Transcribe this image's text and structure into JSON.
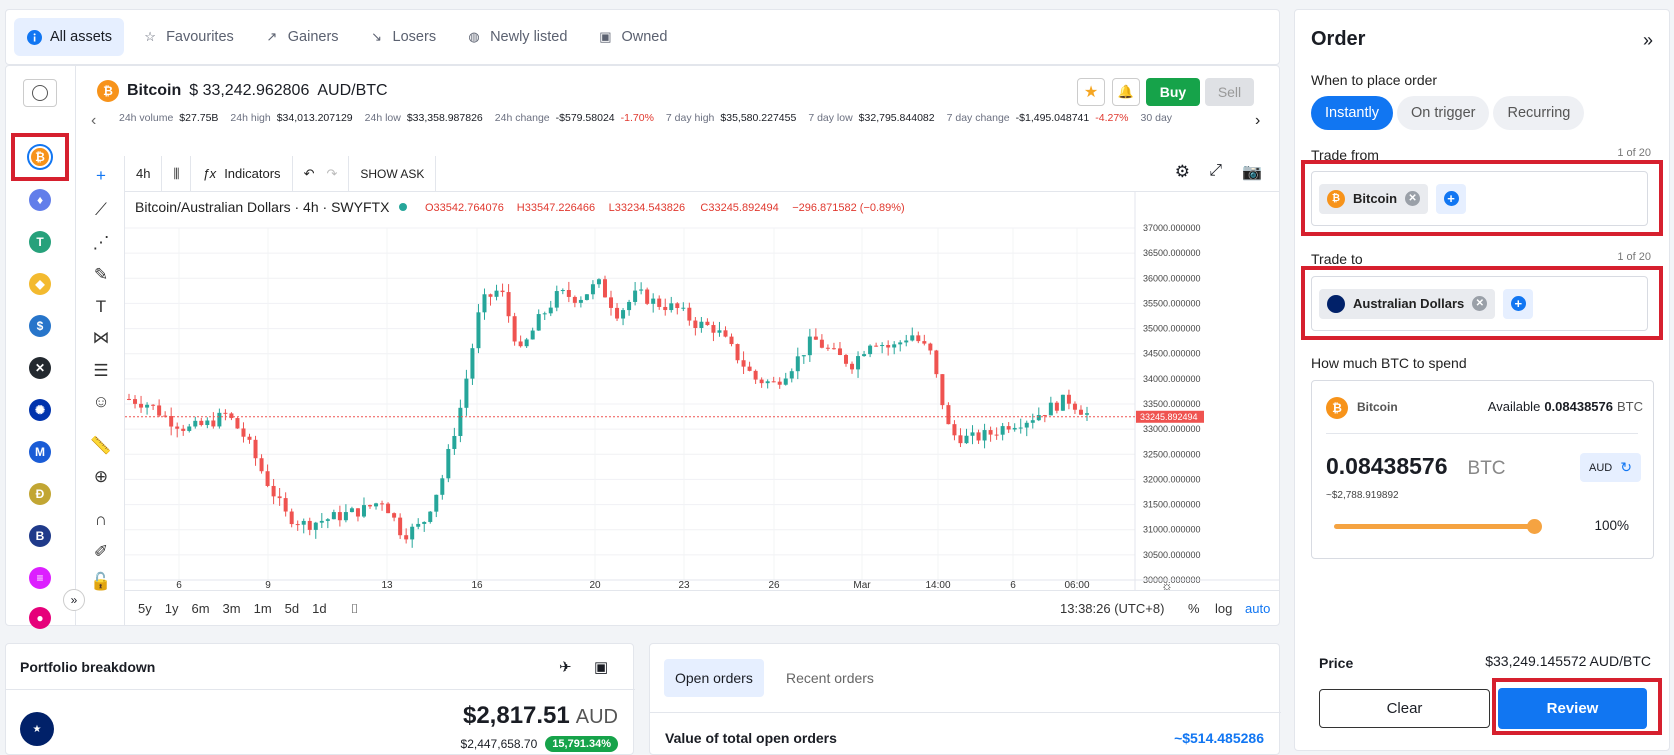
{
  "tabs": [
    {
      "label": "All assets",
      "icon": "info-icon"
    },
    {
      "label": "Favourites",
      "icon": "star-icon"
    },
    {
      "label": "Gainers",
      "icon": "trend-up-icon"
    },
    {
      "label": "Losers",
      "icon": "trend-down-icon"
    },
    {
      "label": "Newly listed",
      "icon": "new-icon"
    },
    {
      "label": "Owned",
      "icon": "wallet-icon"
    }
  ],
  "asset": {
    "name": "Bitcoin",
    "price": "$ 33,242.962806",
    "pair": "AUD/BTC",
    "buy": "Buy",
    "sell": "Sell"
  },
  "stats": [
    {
      "label": "24h volume",
      "value": "$27.75B"
    },
    {
      "label": "24h high",
      "value": "$34,013.207129"
    },
    {
      "label": "24h low",
      "value": "$33,358.987826"
    },
    {
      "label": "24h change",
      "value": "-$579.58024",
      "pct": "-1.70%"
    },
    {
      "label": "7 day high",
      "value": "$35,580.227455"
    },
    {
      "label": "7 day low",
      "value": "$32,795.844082"
    },
    {
      "label": "7 day change",
      "value": "-$1,495.048741",
      "pct": "-4.27%"
    },
    {
      "label": "30 day",
      "value": ""
    }
  ],
  "chart_toolbar": {
    "interval": "4h",
    "indicators": "Indicators",
    "show_ask": "SHOW ASK"
  },
  "chart_data": {
    "type": "candlestick",
    "symbol": "Bitcoin/Australian Dollars · 4h · SWYFTX",
    "ohlc": {
      "o": "O33542.764076",
      "h": "H33547.226466",
      "l": "L33234.543826",
      "c": "C33245.892494",
      "chg": "−296.871582 (−0.89%)"
    },
    "y_ticks": [
      "37000.000000",
      "36500.000000",
      "36000.000000",
      "35500.000000",
      "35000.000000",
      "34500.000000",
      "34000.000000",
      "33500.000000",
      "33000.000000",
      "32500.000000",
      "32000.000000",
      "31500.000000",
      "31000.000000",
      "30500.000000",
      "30000.000000"
    ],
    "x_ticks": [
      "6",
      "9",
      "13",
      "16",
      "20",
      "23",
      "26",
      "Mar",
      "14:00",
      "6",
      "06:00"
    ],
    "last_price": "33245.892494",
    "ylim": [
      30000,
      37000
    ],
    "close_path": [
      [
        0,
        33600
      ],
      [
        2,
        33500
      ],
      [
        4,
        33200
      ],
      [
        6,
        33000
      ],
      [
        8,
        33100
      ],
      [
        10,
        33300
      ],
      [
        12,
        32800
      ],
      [
        14,
        32000
      ],
      [
        16,
        31300
      ],
      [
        18,
        31100
      ],
      [
        20,
        31200
      ],
      [
        22,
        31300
      ],
      [
        24,
        31400
      ],
      [
        26,
        31600
      ],
      [
        28,
        30900
      ],
      [
        30,
        31100
      ],
      [
        32,
        32000
      ],
      [
        34,
        33500
      ],
      [
        36,
        35500
      ],
      [
        38,
        35800
      ],
      [
        40,
        34500
      ],
      [
        42,
        35200
      ],
      [
        44,
        35700
      ],
      [
        46,
        35600
      ],
      [
        48,
        35900
      ],
      [
        50,
        35300
      ],
      [
        52,
        35700
      ],
      [
        54,
        35500
      ],
      [
        56,
        35400
      ],
      [
        58,
        35100
      ],
      [
        60,
        35000
      ],
      [
        62,
        34500
      ],
      [
        64,
        34000
      ],
      [
        66,
        33900
      ],
      [
        68,
        34300
      ],
      [
        70,
        34800
      ],
      [
        72,
        34500
      ],
      [
        74,
        34300
      ],
      [
        76,
        34800
      ],
      [
        78,
        34600
      ],
      [
        80,
        34900
      ],
      [
        82,
        34500
      ],
      [
        84,
        32900
      ],
      [
        86,
        32800
      ],
      [
        88,
        32900
      ],
      [
        90,
        33100
      ],
      [
        92,
        33200
      ],
      [
        94,
        33400
      ],
      [
        96,
        33600
      ],
      [
        98,
        33300
      ]
    ]
  },
  "timeframes": [
    "5y",
    "1y",
    "6m",
    "3m",
    "1m",
    "5d",
    "1d"
  ],
  "clock": "13:38:26 (UTC+8)",
  "scale_opts": [
    "%",
    "log",
    "auto"
  ],
  "portfolio": {
    "title": "Portfolio breakdown",
    "value": "$2,817.51",
    "currency": "AUD",
    "sub": "$2,447,658.70",
    "pct": "15,791.34%"
  },
  "orders": {
    "tabs": [
      "Open orders",
      "Recent orders"
    ],
    "total_label": "Value of total open orders",
    "total_value": "~$514.485286"
  },
  "order_panel": {
    "title": "Order",
    "when": "When to place order",
    "modes": [
      "Instantly",
      "On trigger",
      "Recurring"
    ],
    "trade_from": "Trade from",
    "from_count": "1 of 20",
    "from_asset": "Bitcoin",
    "trade_to": "Trade to",
    "to_count": "1 of 20",
    "to_asset": "Australian Dollars",
    "spend_label": "How much BTC to spend",
    "spend_asset": "Bitcoin",
    "available_label": "Available",
    "available": "0.08438576",
    "available_unit": "BTC",
    "amount": "0.08438576",
    "amount_unit": "BTC",
    "aud_toggle": "AUD",
    "approx": "~$2,788.919892",
    "slider_pct": "100%",
    "slider_value": 1.0,
    "price_label": "Price",
    "price": "$33,249.145572 AUD/BTC",
    "clear": "Clear",
    "review": "Review"
  },
  "colors": {
    "accent": "#1176f2",
    "buy": "#16a34a",
    "up": "#26a69a",
    "down": "#ef5350",
    "bitcoin": "#f7931a",
    "highlight": "#d6202e"
  }
}
